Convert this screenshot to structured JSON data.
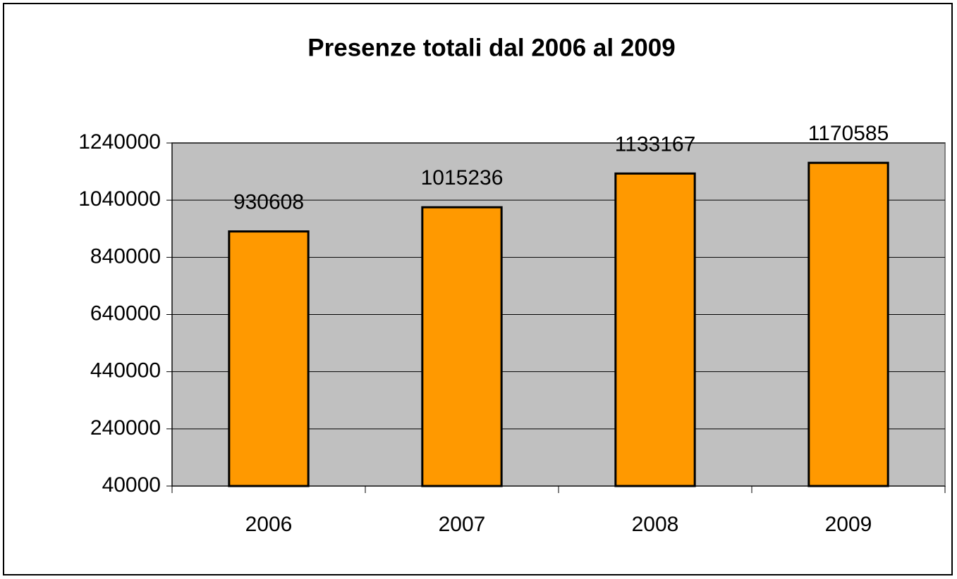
{
  "chart_data": {
    "type": "bar",
    "title": "Presenze totali dal 2006 al 2009",
    "categories": [
      "2006",
      "2007",
      "2008",
      "2009"
    ],
    "values": [
      930608,
      1015236,
      1133167,
      1170585
    ],
    "color": "#ff9900",
    "ylim": [
      40000,
      1240000
    ],
    "yticks": [
      40000,
      240000,
      440000,
      640000,
      840000,
      1040000,
      1240000
    ],
    "grid": true
  }
}
